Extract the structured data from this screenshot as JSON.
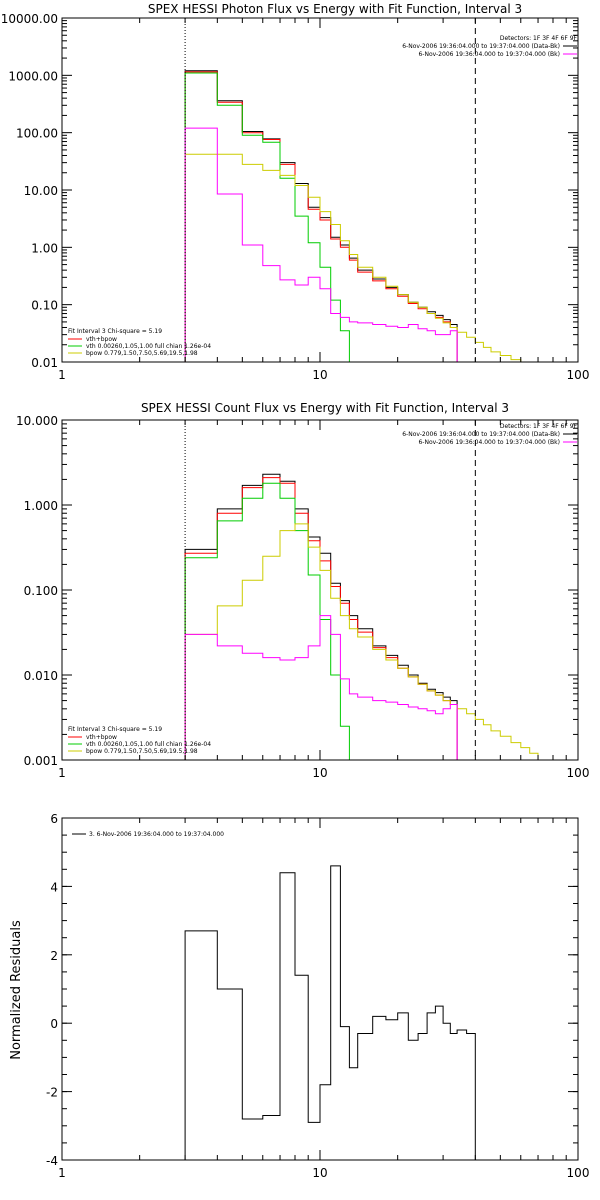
{
  "page": {
    "background": "#ffffff"
  },
  "colors": {
    "axes": "#000000",
    "total": "#000000",
    "model": "#ff0000",
    "thermal": "#00cc00",
    "powerlaw": "#cccc00",
    "background": "#ff00ff"
  },
  "chart_data": [
    {
      "type": "line",
      "step": true,
      "title": "SPEX HESSI Photon Flux vs Energy with Fit Function, Interval 3",
      "xscale": "log",
      "yscale": "log",
      "xlim": [
        1,
        100
      ],
      "ylim": [
        0.01,
        10000
      ],
      "xticks": [
        "1",
        "10",
        "100"
      ],
      "yticks": [
        "0.01",
        "0.10",
        "1.00",
        "10.00",
        "100.00",
        "1000.00",
        "10000.00"
      ],
      "vlines": [
        {
          "x": 3,
          "style": "dotted"
        },
        {
          "x": 40,
          "style": "dashed"
        }
      ],
      "legend_right": {
        "header": "Detectors: 1F 3F 4F 6F 9F",
        "entries": [
          {
            "text": "6-Nov-2006 19:36:04.000 to 19:37:04.000 (Data-Bk)",
            "color": "#000000"
          },
          {
            "text": "6-Nov-2006 19:36:04.000 to 19:37:04.000 (Bk)",
            "color": "#ff00ff"
          }
        ]
      },
      "legend_left": {
        "header": "Fit Interval 3   Chi-square = 5.19",
        "entries": [
          {
            "text": "vth+bpow",
            "color": "#ff0000"
          },
          {
            "text": "vth 0.00260,1.05,1.00  full chian 1.26e-04",
            "color": "#00cc00"
          },
          {
            "text": "bpow 0.779,1.50,7.50,5.69,19.5,1.98",
            "color": "#cccc00"
          }
        ]
      },
      "edges": [
        3,
        4,
        5,
        6,
        7,
        8,
        9,
        10,
        11,
        12,
        13,
        14,
        16,
        18,
        20,
        22,
        24,
        26,
        28,
        30,
        32,
        34,
        37,
        40,
        43,
        46,
        50,
        55,
        60,
        65,
        70
      ],
      "series": [
        {
          "name": "Data-Bk",
          "color": "#000000",
          "values": [
            1200,
            360,
            105,
            78,
            30,
            13,
            5,
            3.3,
            1.5,
            1.1,
            0.65,
            0.4,
            0.28,
            0.2,
            0.15,
            0.11,
            0.09,
            0.075,
            0.065,
            0.055,
            0.045
          ]
        },
        {
          "name": "vth+bpow",
          "color": "#ff0000",
          "values": [
            1150,
            340,
            100,
            76,
            28,
            12,
            4.6,
            3.0,
            1.4,
            1.0,
            0.6,
            0.37,
            0.26,
            0.19,
            0.14,
            0.105,
            0.085,
            0.07,
            0.06,
            0.05,
            0.04
          ]
        },
        {
          "name": "vth",
          "color": "#00cc00",
          "values": [
            1100,
            300,
            90,
            68,
            16,
            3.5,
            1.2,
            0.45,
            0.12,
            0.035,
            0.01
          ]
        },
        {
          "name": "bpow",
          "color": "#cccc00",
          "values": [
            42,
            42,
            28,
            22,
            18,
            12,
            7.5,
            4.2,
            2.5,
            1.3,
            0.75,
            0.45,
            0.3,
            0.21,
            0.15,
            0.11,
            0.09,
            0.07,
            0.058,
            0.048,
            0.04,
            0.033,
            0.027,
            0.022,
            0.018,
            0.015,
            0.013,
            0.011,
            0.01,
            0.01
          ]
        },
        {
          "name": "Bk",
          "color": "#ff00ff",
          "values": [
            120,
            8.5,
            1.1,
            0.48,
            0.27,
            0.22,
            0.3,
            0.19,
            0.07,
            0.06,
            0.05,
            0.048,
            0.045,
            0.042,
            0.04,
            0.045,
            0.038,
            0.035,
            0.03,
            0.03,
            0.035
          ]
        }
      ]
    },
    {
      "type": "line",
      "step": true,
      "title": "SPEX HESSI Count Flux vs Energy with Fit Function, Interval 3",
      "xscale": "log",
      "yscale": "log",
      "xlim": [
        1,
        100
      ],
      "ylim": [
        0.001,
        10
      ],
      "xticks": [
        "1",
        "10",
        "100"
      ],
      "yticks": [
        "0.001",
        "0.010",
        "0.100",
        "1.000",
        "10.000"
      ],
      "vlines": [
        {
          "x": 3,
          "style": "dotted"
        },
        {
          "x": 40,
          "style": "dashed"
        }
      ],
      "legend_right": {
        "header": "Detectors: 1F 3F 4F 6F 9F",
        "entries": [
          {
            "text": "6-Nov-2006 19:36:04.000 to 19:37:04.000 (Data-Bk)",
            "color": "#000000"
          },
          {
            "text": "6-Nov-2006 19:36:04.000 to 19:37:04.000 (Bk)",
            "color": "#ff00ff"
          }
        ]
      },
      "legend_left": {
        "header": "Fit Interval 3   Chi-square = 5.19",
        "entries": [
          {
            "text": "vth+bpow",
            "color": "#ff0000"
          },
          {
            "text": "vth 0.00260,1.05,1.00  full chian 1.26e-04",
            "color": "#00cc00"
          },
          {
            "text": "bpow 0.779,1.50,7.50,5.69,19.5,1.98",
            "color": "#cccc00"
          }
        ]
      },
      "edges": [
        3,
        4,
        5,
        6,
        7,
        8,
        9,
        10,
        11,
        12,
        13,
        14,
        16,
        18,
        20,
        22,
        24,
        26,
        28,
        30,
        32,
        34,
        37,
        40,
        43,
        46,
        50,
        55,
        60,
        65,
        70,
        80,
        90,
        100
      ],
      "series": [
        {
          "name": "Data-Bk",
          "color": "#000000",
          "values": [
            0.3,
            0.9,
            1.7,
            2.3,
            1.9,
            0.9,
            0.42,
            0.27,
            0.12,
            0.075,
            0.05,
            0.035,
            0.022,
            0.017,
            0.013,
            0.01,
            0.008,
            0.0068,
            0.0062,
            0.0055,
            0.005
          ]
        },
        {
          "name": "vth+bpow",
          "color": "#ff0000",
          "values": [
            0.27,
            0.8,
            1.6,
            2.1,
            1.8,
            0.8,
            0.38,
            0.22,
            0.11,
            0.07,
            0.045,
            0.032,
            0.021,
            0.016,
            0.012,
            0.0095,
            0.0078,
            0.0065,
            0.0058,
            0.005,
            0.0045
          ]
        },
        {
          "name": "vth",
          "color": "#00cc00",
          "values": [
            0.24,
            0.65,
            1.2,
            1.8,
            1.2,
            0.5,
            0.15,
            0.045,
            0.01,
            0.0025,
            0.001
          ]
        },
        {
          "name": "bpow",
          "color": "#cccc00",
          "values": [
            0.03,
            0.065,
            0.13,
            0.25,
            0.5,
            0.6,
            0.32,
            0.17,
            0.08,
            0.05,
            0.035,
            0.028,
            0.02,
            0.015,
            0.012,
            0.0095,
            0.0078,
            0.0065,
            0.0058,
            0.005,
            0.0045,
            0.004,
            0.0035,
            0.003,
            0.0026,
            0.0022,
            0.0019,
            0.0016,
            0.0014,
            0.0012,
            0.001,
            0.001
          ]
        },
        {
          "name": "Bk",
          "color": "#ff00ff",
          "values": [
            0.03,
            0.022,
            0.018,
            0.016,
            0.015,
            0.016,
            0.022,
            0.05,
            0.03,
            0.009,
            0.006,
            0.0055,
            0.005,
            0.0048,
            0.0045,
            0.0042,
            0.004,
            0.0038,
            0.0035,
            0.004,
            0.0045
          ]
        }
      ]
    },
    {
      "type": "line",
      "step": true,
      "xscale": "log",
      "yscale": "linear",
      "xlim": [
        1,
        100
      ],
      "ylim": [
        -4,
        6
      ],
      "ylabel": "Normalized Residuals",
      "xticks": [
        "1",
        "10",
        "100"
      ],
      "yticks": [
        "-4",
        "-2",
        "0",
        "2",
        "4",
        "6"
      ],
      "legend_left": {
        "entries": [
          {
            "text": "3.  6-Nov-2006 19:36:04.000 to 19:37:04.000",
            "color": "#000000"
          }
        ]
      },
      "edges": [
        3,
        4,
        5,
        6,
        7,
        8,
        9,
        10,
        11,
        12,
        13,
        14,
        16,
        18,
        20,
        22,
        24,
        26,
        28,
        30,
        32,
        34,
        37,
        40
      ],
      "series": [
        {
          "color": "#000000",
          "values": [
            2.7,
            1.0,
            -2.8,
            -2.7,
            4.4,
            1.4,
            -2.9,
            -1.8,
            4.6,
            -0.1,
            -1.3,
            -0.3,
            0.2,
            0.1,
            0.3,
            -0.5,
            -0.3,
            0.3,
            0.5,
            0.0,
            -0.3,
            -0.2,
            -0.3
          ]
        }
      ]
    }
  ]
}
